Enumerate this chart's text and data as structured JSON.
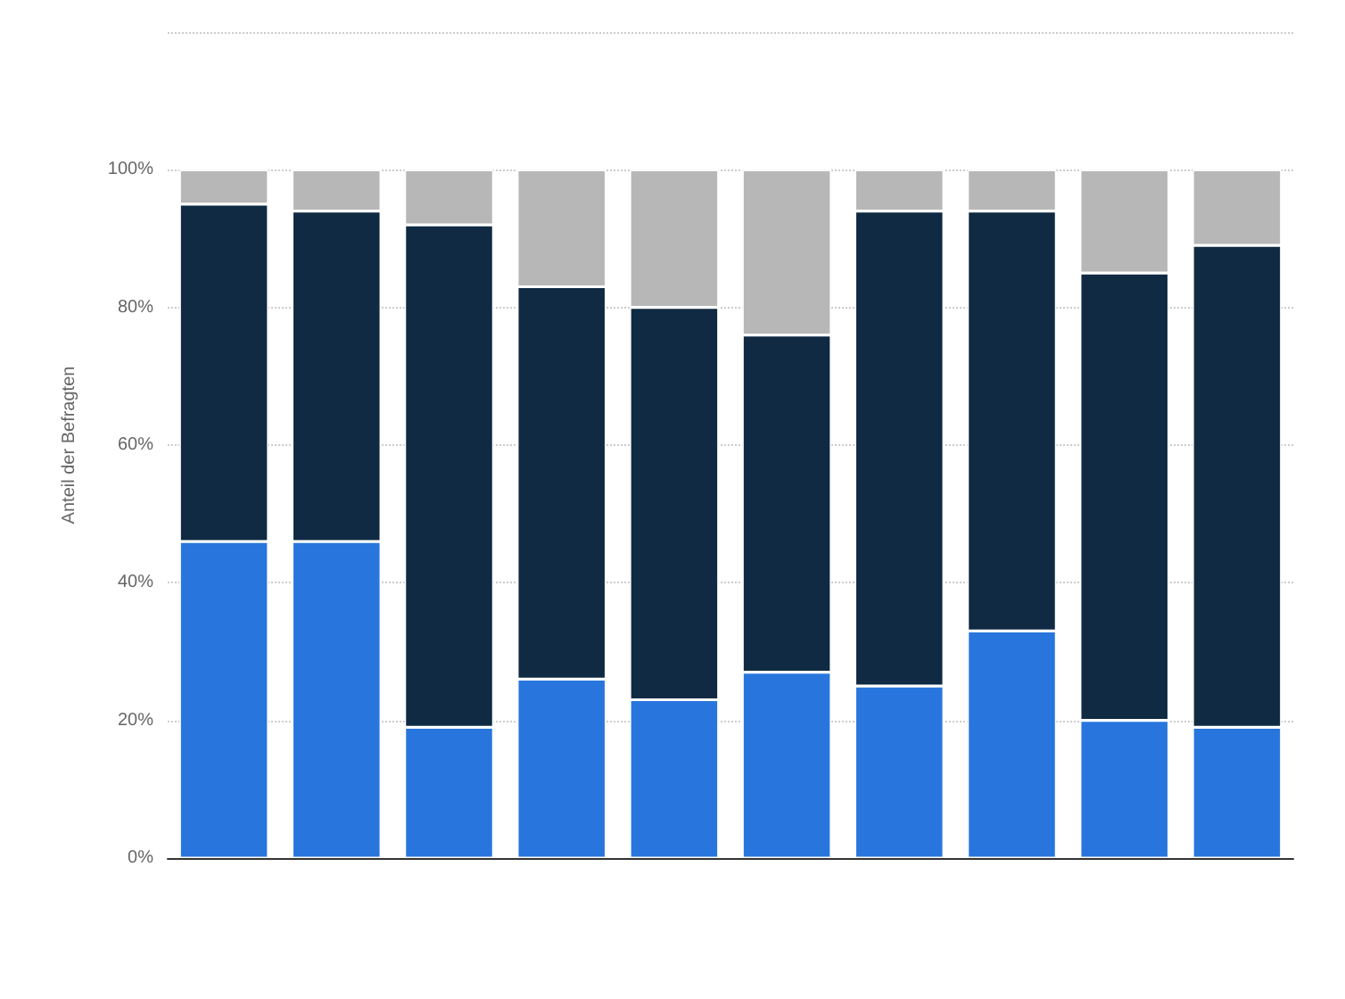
{
  "chart_data": {
    "type": "bar",
    "stacked": true,
    "ylabel": "Anteil der Befragten",
    "categories": [
      null,
      null,
      null,
      null,
      null,
      null,
      null,
      null,
      null,
      null
    ],
    "series": [
      {
        "color": "#2876dd",
        "values": [
          46,
          46,
          19,
          26,
          23,
          27,
          25,
          33,
          20,
          19
        ]
      },
      {
        "color": "#0f2a42",
        "values": [
          49,
          48,
          73,
          57,
          57,
          49,
          69,
          61,
          65,
          70
        ]
      },
      {
        "color": "#b7b7b7",
        "values": [
          5,
          6,
          8,
          17,
          20,
          24,
          6,
          6,
          15,
          11
        ]
      }
    ],
    "ylim": [
      0,
      120
    ],
    "yticks": [
      {
        "value": 0,
        "label": "0%"
      },
      {
        "value": 20,
        "label": "20%"
      },
      {
        "value": 40,
        "label": "40%"
      },
      {
        "value": 60,
        "label": "60%"
      },
      {
        "value": 80,
        "label": "80%"
      },
      {
        "value": 100,
        "label": "100%"
      },
      {
        "value": 120,
        "label": null
      }
    ],
    "grid": "y"
  }
}
